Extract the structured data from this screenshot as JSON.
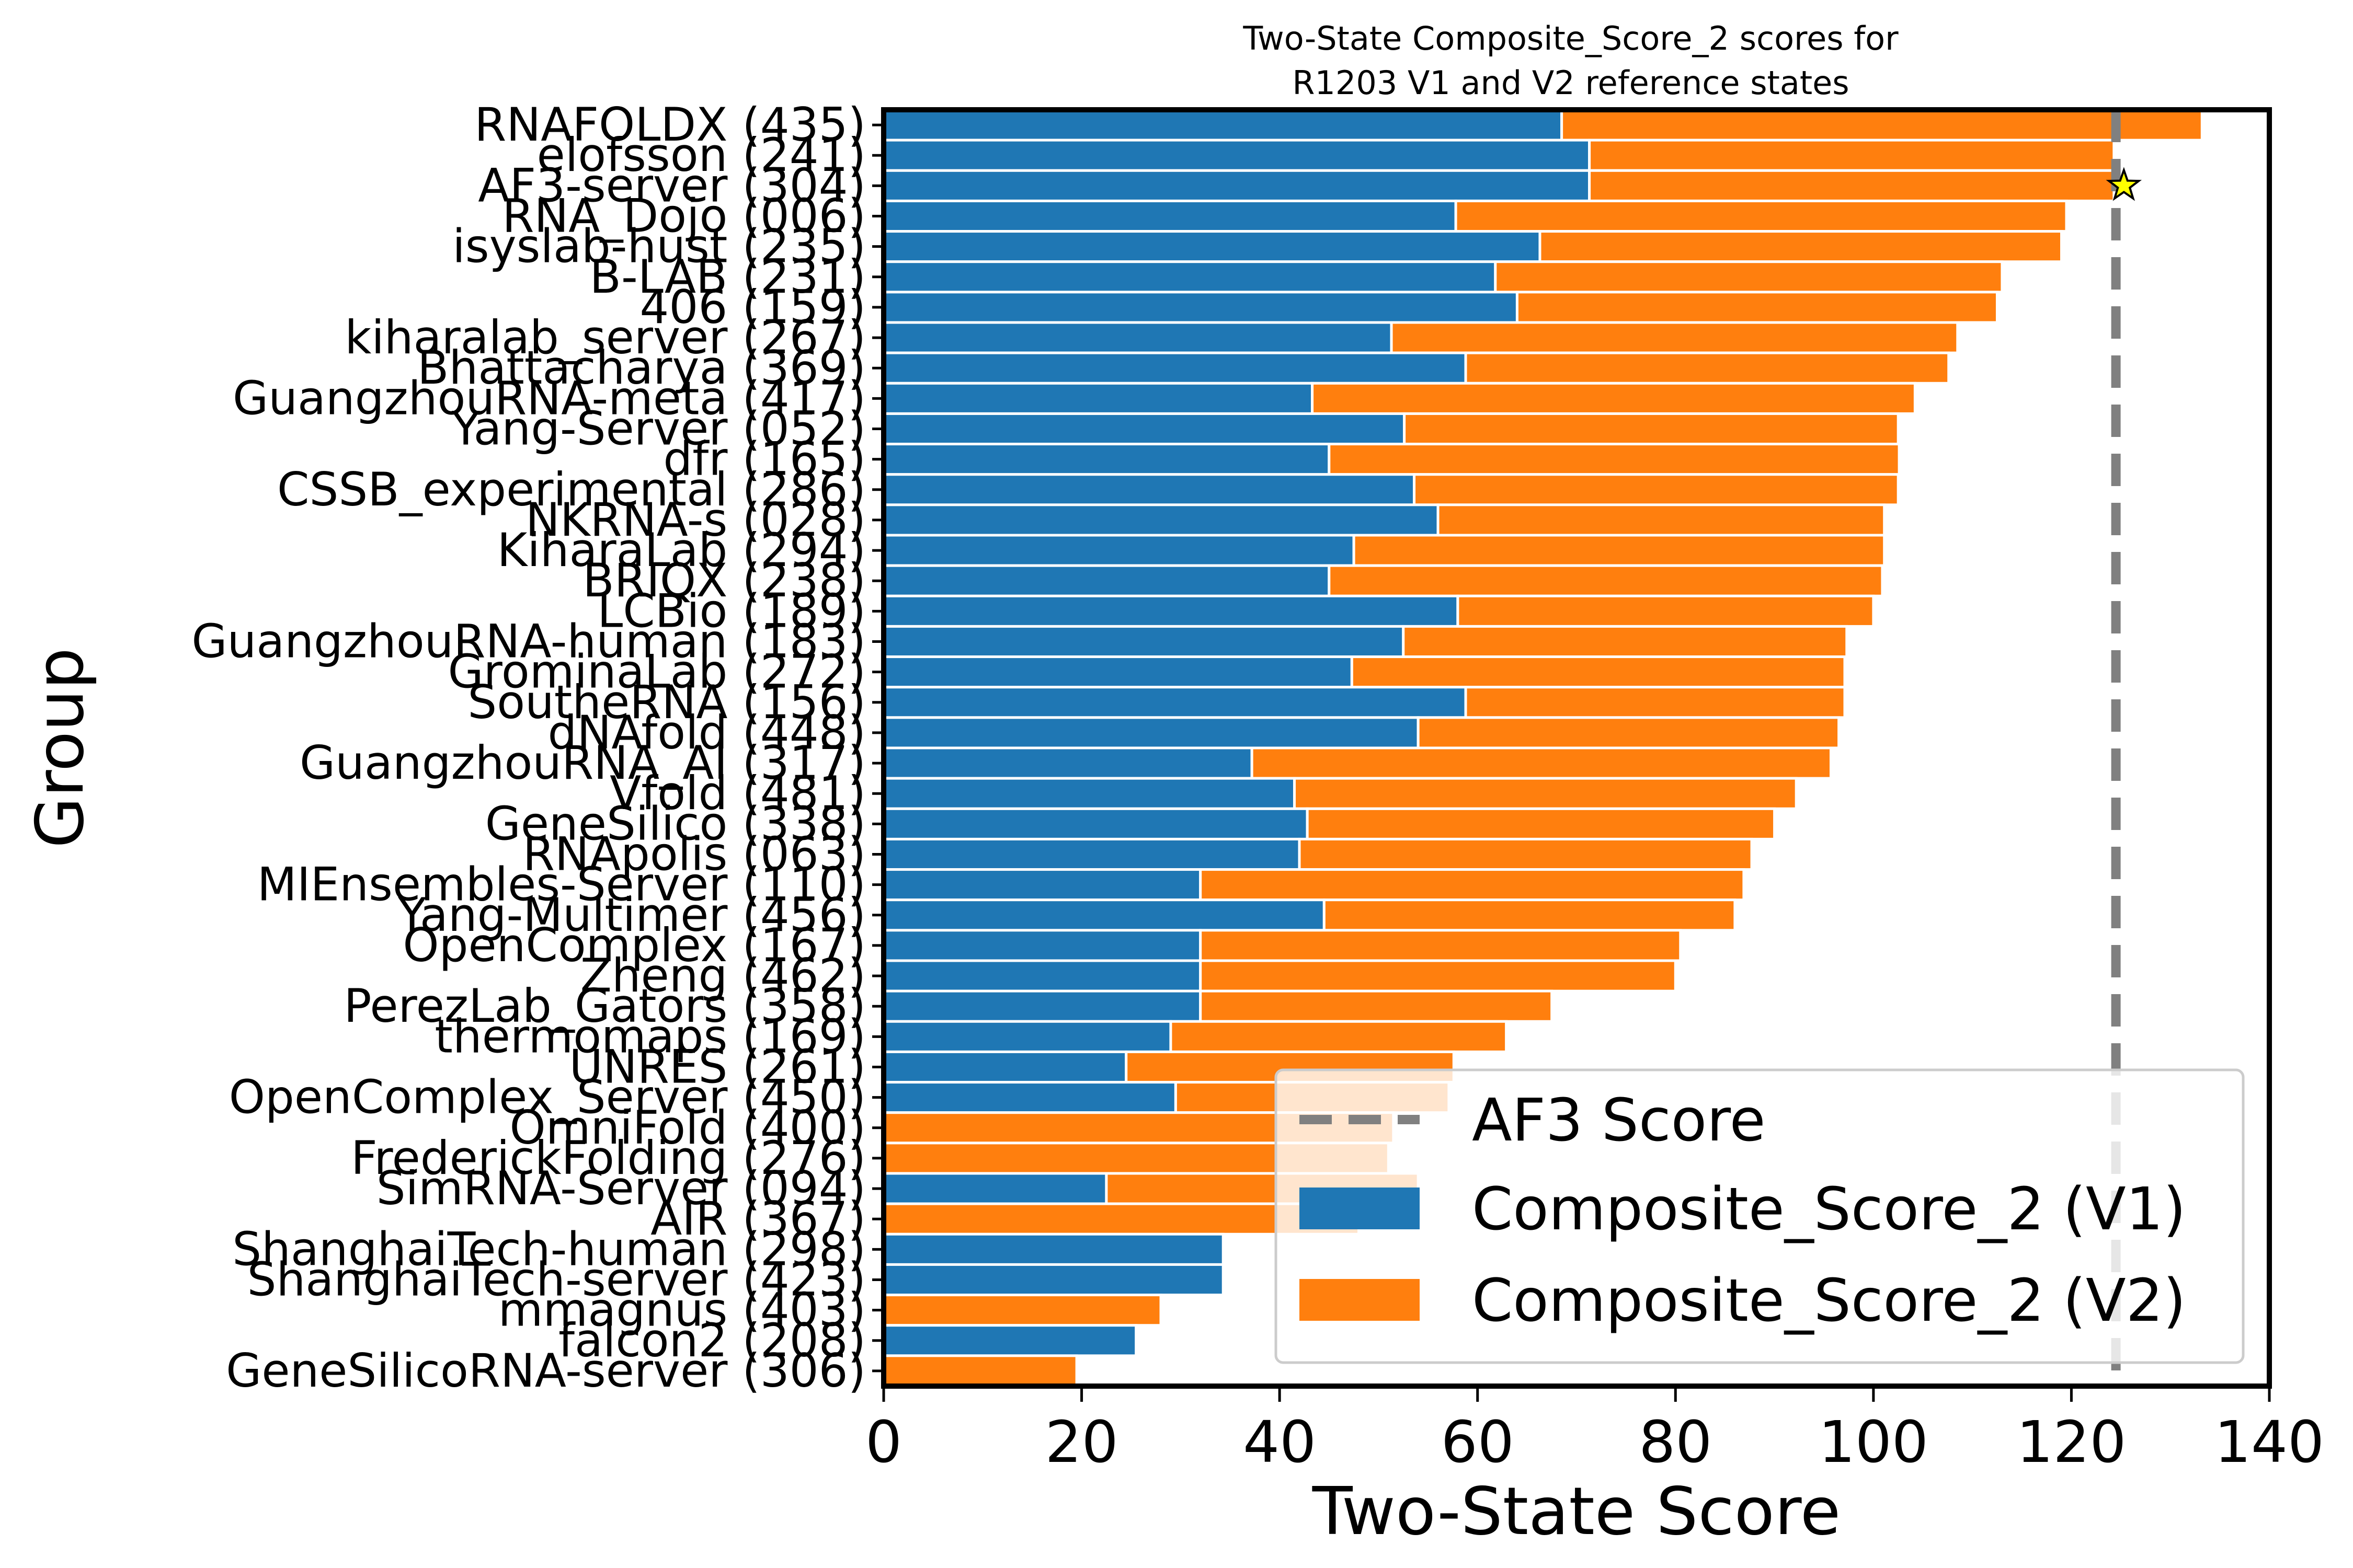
{
  "chart_data": {
    "type": "bar",
    "title": "Two-State Composite_Score_2 scores for\nR1203 V1 and V2 reference states",
    "xlabel": "Two-State Score",
    "ylabel": "Group",
    "xlim": [
      0,
      140
    ],
    "xticks": [
      "0",
      "20",
      "40",
      "60",
      "80",
      "100",
      "120",
      "140"
    ],
    "grid": false,
    "legend_position": "lower-right",
    "reference_line": {
      "label": "AF3 Score",
      "value": 124.5,
      "color": "#808080",
      "style": "dashed"
    },
    "star_marker": {
      "category": "AF3-server (304)",
      "value": 125.3,
      "color": "#ffff00"
    },
    "categories": [
      "RNAFOLDX (435)",
      "elofsson (241)",
      "AF3-server (304)",
      "RNA_Dojo (006)",
      "isyslab-hust (235)",
      "B-LAB (231)",
      "406 (159)",
      "kiharalab_server (267)",
      "Bhattacharya (369)",
      "GuangzhouRNA-meta (417)",
      "Yang-Server (052)",
      "dfr (165)",
      "CSSB_experimental (286)",
      "NKRNA-s (028)",
      "KiharaLab (294)",
      "BRIQX (238)",
      "LCBio (189)",
      "GuangzhouRNA-human (183)",
      "GrominaLab (272)",
      "SoutheRNA (156)",
      "dNAfold (448)",
      "GuangzhouRNA_AI (317)",
      "Vfold (481)",
      "GeneSilico (338)",
      "RNApolis (063)",
      "MIEnsembles-Server (110)",
      "Yang-Multimer (456)",
      "OpenComplex (167)",
      "Zheng (462)",
      "PerezLab_Gators (358)",
      "thermomaps (169)",
      "UNRES (261)",
      "OpenComplex_Server (450)",
      "OmniFold (400)",
      "FrederickFolding (276)",
      "SimRNA-Server (094)",
      "AIR (367)",
      "ShanghaiTech-human (298)",
      "ShanghaiTech-server (423)",
      "mmagnus (403)",
      "falcon2 (208)",
      "GeneSilicoRNA-server (306)"
    ],
    "series": [
      {
        "name": "Composite_Score_2 (V1)",
        "color": "#1f77b4",
        "values": [
          68.5,
          71.3,
          71.3,
          57.8,
          66.3,
          61.8,
          64.0,
          51.3,
          58.8,
          43.3,
          52.6,
          45.0,
          53.6,
          56.0,
          47.5,
          45.0,
          58.0,
          52.5,
          47.3,
          58.8,
          54.0,
          37.2,
          41.5,
          42.8,
          42.0,
          32.0,
          44.5,
          32.0,
          32.0,
          32.0,
          29.0,
          24.5,
          29.5,
          0.0,
          0.0,
          22.5,
          0.0,
          34.3,
          34.3,
          0.0,
          25.5,
          0.0
        ]
      },
      {
        "name": "Composite_Score_2 (V2)",
        "color": "#ff7f0e",
        "values": [
          64.7,
          53.0,
          53.0,
          61.7,
          52.7,
          51.2,
          48.5,
          57.2,
          48.8,
          60.9,
          49.9,
          57.6,
          48.9,
          45.1,
          53.6,
          55.9,
          42.0,
          44.8,
          49.8,
          38.3,
          42.5,
          58.5,
          50.7,
          47.2,
          45.7,
          54.9,
          41.5,
          48.5,
          48.0,
          35.5,
          33.9,
          33.1,
          27.6,
          51.5,
          51.0,
          31.5,
          48.0,
          0.0,
          0.0,
          28.0,
          0.0,
          19.5
        ]
      }
    ]
  }
}
